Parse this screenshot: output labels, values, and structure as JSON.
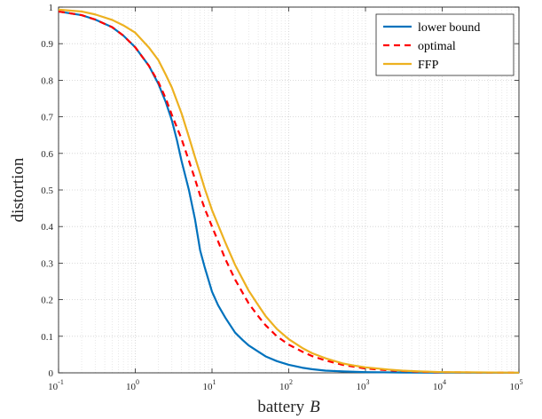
{
  "chart_data": {
    "type": "line",
    "xscale": "log",
    "xlim": [
      0.1,
      100000
    ],
    "ylim": [
      0,
      1
    ],
    "grid": true,
    "minor_grid": true,
    "xlabel": "battery",
    "xlabel_var": "B",
    "ylabel": "distortion",
    "legend_position": "top-right",
    "x_ticks": [
      {
        "value": 0.1,
        "base": "10",
        "exp": "-1"
      },
      {
        "value": 1,
        "base": "10",
        "exp": "0"
      },
      {
        "value": 10,
        "base": "10",
        "exp": "1"
      },
      {
        "value": 100,
        "base": "10",
        "exp": "2"
      },
      {
        "value": 1000,
        "base": "10",
        "exp": "3"
      },
      {
        "value": 10000,
        "base": "10",
        "exp": "4"
      },
      {
        "value": 100000,
        "base": "10",
        "exp": "5"
      }
    ],
    "y_ticks": [
      {
        "value": 0,
        "label": "0"
      },
      {
        "value": 0.1,
        "label": "0.1"
      },
      {
        "value": 0.2,
        "label": "0.2"
      },
      {
        "value": 0.3,
        "label": "0.3"
      },
      {
        "value": 0.4,
        "label": "0.4"
      },
      {
        "value": 0.5,
        "label": "0.5"
      },
      {
        "value": 0.6,
        "label": "0.6"
      },
      {
        "value": 0.7,
        "label": "0.7"
      },
      {
        "value": 0.8,
        "label": "0.8"
      },
      {
        "value": 0.9,
        "label": "0.9"
      },
      {
        "value": 1,
        "label": "1"
      }
    ],
    "series": [
      {
        "name": "lower bound",
        "color": "#0072BD",
        "dash": "solid",
        "points": [
          [
            0.1,
            0.988
          ],
          [
            0.2,
            0.978
          ],
          [
            0.3,
            0.966
          ],
          [
            0.5,
            0.945
          ],
          [
            0.7,
            0.922
          ],
          [
            1,
            0.89
          ],
          [
            1.5,
            0.84
          ],
          [
            2,
            0.79
          ],
          [
            2.5,
            0.74
          ],
          [
            3,
            0.69
          ],
          [
            3.5,
            0.635
          ],
          [
            4,
            0.58
          ],
          [
            5,
            0.5
          ],
          [
            6,
            0.42
          ],
          [
            7,
            0.335
          ],
          [
            8,
            0.29
          ],
          [
            10,
            0.222
          ],
          [
            12,
            0.185
          ],
          [
            15,
            0.15
          ],
          [
            20,
            0.11
          ],
          [
            25,
            0.09
          ],
          [
            30,
            0.075
          ],
          [
            40,
            0.058
          ],
          [
            50,
            0.045
          ],
          [
            70,
            0.032
          ],
          [
            100,
            0.022
          ],
          [
            150,
            0.014
          ],
          [
            200,
            0.01
          ],
          [
            300,
            0.006
          ],
          [
            500,
            0.004
          ],
          [
            1000,
            0.002
          ],
          [
            3000,
            0.001
          ],
          [
            10000,
            0.0005
          ],
          [
            100000,
            0.0002
          ]
        ]
      },
      {
        "name": "optimal",
        "color": "#FF0000",
        "dash": "dashed",
        "points": [
          [
            0.1,
            0.988
          ],
          [
            0.2,
            0.978
          ],
          [
            0.3,
            0.966
          ],
          [
            0.5,
            0.945
          ],
          [
            0.7,
            0.922
          ],
          [
            1,
            0.89
          ],
          [
            1.5,
            0.84
          ],
          [
            2,
            0.795
          ],
          [
            2.5,
            0.75
          ],
          [
            3,
            0.705
          ],
          [
            4,
            0.64
          ],
          [
            5,
            0.58
          ],
          [
            6,
            0.53
          ],
          [
            7,
            0.485
          ],
          [
            8,
            0.45
          ],
          [
            10,
            0.4
          ],
          [
            15,
            0.31
          ],
          [
            20,
            0.255
          ],
          [
            30,
            0.19
          ],
          [
            40,
            0.155
          ],
          [
            50,
            0.13
          ],
          [
            70,
            0.1
          ],
          [
            100,
            0.077
          ],
          [
            150,
            0.058
          ],
          [
            200,
            0.046
          ],
          [
            300,
            0.034
          ],
          [
            500,
            0.022
          ],
          [
            700,
            0.017
          ],
          [
            1000,
            0.012
          ],
          [
            2000,
            0.007
          ],
          [
            3000,
            0.005
          ],
          [
            5000,
            0.003
          ],
          [
            10000,
            0.0015
          ],
          [
            100000,
            0.0004
          ]
        ]
      },
      {
        "name": "FFP",
        "color": "#EDB120",
        "dash": "solid",
        "points": [
          [
            0.1,
            0.993
          ],
          [
            0.2,
            0.988
          ],
          [
            0.3,
            0.98
          ],
          [
            0.5,
            0.965
          ],
          [
            0.7,
            0.95
          ],
          [
            1,
            0.93
          ],
          [
            1.5,
            0.89
          ],
          [
            2,
            0.855
          ],
          [
            2.5,
            0.815
          ],
          [
            3,
            0.78
          ],
          [
            4,
            0.71
          ],
          [
            5,
            0.645
          ],
          [
            6,
            0.59
          ],
          [
            7,
            0.545
          ],
          [
            8,
            0.505
          ],
          [
            10,
            0.445
          ],
          [
            15,
            0.355
          ],
          [
            20,
            0.295
          ],
          [
            30,
            0.225
          ],
          [
            40,
            0.185
          ],
          [
            50,
            0.155
          ],
          [
            70,
            0.12
          ],
          [
            100,
            0.092
          ],
          [
            150,
            0.068
          ],
          [
            200,
            0.054
          ],
          [
            300,
            0.04
          ],
          [
            500,
            0.026
          ],
          [
            700,
            0.02
          ],
          [
            1000,
            0.015
          ],
          [
            2000,
            0.009
          ],
          [
            3000,
            0.006
          ],
          [
            5000,
            0.004
          ],
          [
            10000,
            0.002
          ],
          [
            100000,
            0.0005
          ]
        ]
      }
    ]
  }
}
